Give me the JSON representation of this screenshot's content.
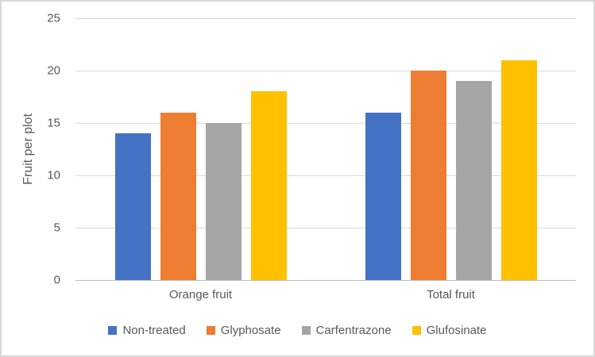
{
  "chart_data": {
    "type": "bar",
    "categories": [
      "Orange fruit",
      "Total fruit"
    ],
    "series": [
      {
        "name": "Non-treated",
        "color": "#4472C4",
        "values": [
          14,
          16
        ]
      },
      {
        "name": "Glyphosate",
        "color": "#ED7D31",
        "values": [
          16,
          20
        ]
      },
      {
        "name": "Carfentrazone",
        "color": "#A5A5A5",
        "values": [
          15,
          19
        ]
      },
      {
        "name": "Glufosinate",
        "color": "#FFC000",
        "values": [
          18,
          21
        ]
      }
    ],
    "title": "",
    "xlabel": "",
    "ylabel": "Fruit per plot",
    "ylim": [
      0,
      25
    ],
    "yticks": [
      0,
      5,
      10,
      15,
      20,
      25
    ],
    "grid": true,
    "legend_position": "bottom"
  },
  "styles": {
    "text_color": "#595959",
    "gridline_color": "#D9D9D9",
    "axis_line_color": "#BFBFBF",
    "frame_border_color": "#D9D9D9",
    "background": "#FFFFFF"
  }
}
